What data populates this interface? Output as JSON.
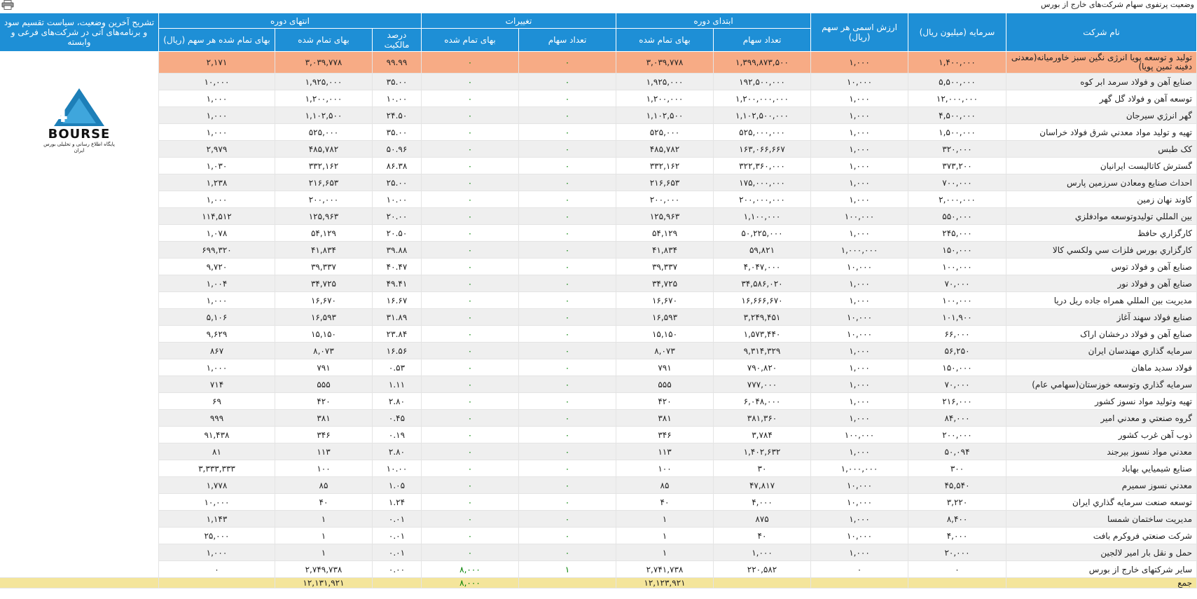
{
  "page": {
    "title": "وضعیت پرتفوی سهام شرکت‌های خارج از بورس"
  },
  "header": {
    "company": "نام شرکت",
    "capital": "سرمایه (میلیون ریال)",
    "par_value": "ارزش اسمی هر سهم (ریال)",
    "period_start": "ابتدای دوره",
    "changes": "تغییرات",
    "period_end": "انتهای دوره",
    "description": "تشریح آخرین وضعیت، سیاست تقسیم سود و برنامه‌های آتی در شرکت‌های فرعی و وابسته",
    "shares_count": "تعداد سهام",
    "cost": "بهای تمام شده",
    "ownership": "درصد مالکیت",
    "cost_per_share": "بهای تمام شده هر سهم (ریال)"
  },
  "logo": {
    "brand": "BOURSE",
    "subtitle": "پایگاه اطلاع رسانی و تحلیلی بورس ایران"
  },
  "rows": [
    {
      "name": "تولید و توسعه پویا انرژی نگین سبز خاورمیانه(معدنی دفینه ثمین پویا)",
      "capital": "۱,۴۰۰,۰۰۰",
      "par": "۱,۰۰۰",
      "s_count": "۱,۳۹۹,۸۷۳,۵۰۰",
      "s_cost": "۳,۰۳۹,۷۷۸",
      "c_count": "۰",
      "c_cost": "۰",
      "ownership": "۹۹.۹۹",
      "e_cost": "۳,۰۳۹,۷۷۸",
      "per_share": "۲,۱۷۱"
    },
    {
      "name": "صنایع آهن و فولاد سرمد ابر کوه",
      "capital": "۵,۵۰۰,۰۰۰",
      "par": "۱۰,۰۰۰",
      "s_count": "۱۹۲,۵۰۰,۰۰۰",
      "s_cost": "۱,۹۲۵,۰۰۰",
      "c_count": "۰",
      "c_cost": "۰",
      "ownership": "۳۵.۰۰",
      "e_cost": "۱,۹۲۵,۰۰۰",
      "per_share": "۱۰,۰۰۰"
    },
    {
      "name": "توسعه آهن و فولاد گل گهر",
      "capital": "۱۲,۰۰۰,۰۰۰",
      "par": "۱,۰۰۰",
      "s_count": "۱,۲۰۰,۰۰۰,۰۰۰",
      "s_cost": "۱,۲۰۰,۰۰۰",
      "c_count": "۰",
      "c_cost": "۰",
      "ownership": "۱۰.۰۰",
      "e_cost": "۱,۲۰۰,۰۰۰",
      "per_share": "۱,۰۰۰"
    },
    {
      "name": "گهر انرژي سيرجان",
      "capital": "۴,۵۰۰,۰۰۰",
      "par": "۱,۰۰۰",
      "s_count": "۱,۱۰۲,۵۰۰,۰۰۰",
      "s_cost": "۱,۱۰۲,۵۰۰",
      "c_count": "۰",
      "c_cost": "۰",
      "ownership": "۲۴.۵۰",
      "e_cost": "۱,۱۰۲,۵۰۰",
      "per_share": "۱,۰۰۰"
    },
    {
      "name": "تهیه و تولید مواد معدني شرق فولاد خراسان",
      "capital": "۱,۵۰۰,۰۰۰",
      "par": "۱,۰۰۰",
      "s_count": "۵۲۵,۰۰۰,۰۰۰",
      "s_cost": "۵۲۵,۰۰۰",
      "c_count": "۰",
      "c_cost": "۰",
      "ownership": "۳۵.۰۰",
      "e_cost": "۵۲۵,۰۰۰",
      "per_share": "۱,۰۰۰"
    },
    {
      "name": "کک طبس",
      "capital": "۳۲۰,۰۰۰",
      "par": "۱,۰۰۰",
      "s_count": "۱۶۳,۰۶۶,۶۶۷",
      "s_cost": "۴۸۵,۷۸۲",
      "c_count": "۰",
      "c_cost": "۰",
      "ownership": "۵۰.۹۶",
      "e_cost": "۴۸۵,۷۸۲",
      "per_share": "۲,۹۷۹"
    },
    {
      "name": "گسترش کاتالیست ایرانیان",
      "capital": "۳۷۳,۲۰۰",
      "par": "۱,۰۰۰",
      "s_count": "۳۲۲,۳۶۰,۰۰۰",
      "s_cost": "۳۳۲,۱۶۲",
      "c_count": "۰",
      "c_cost": "۰",
      "ownership": "۸۶.۳۸",
      "e_cost": "۳۳۲,۱۶۲",
      "per_share": "۱,۰۳۰"
    },
    {
      "name": "احداث صنايع ومعادن سرزمين پارس",
      "capital": "۷۰۰,۰۰۰",
      "par": "۱,۰۰۰",
      "s_count": "۱۷۵,۰۰۰,۰۰۰",
      "s_cost": "۲۱۶,۶۵۳",
      "c_count": "۰",
      "c_cost": "۰",
      "ownership": "۲۵.۰۰",
      "e_cost": "۲۱۶,۶۵۳",
      "per_share": "۱,۲۳۸"
    },
    {
      "name": "کاوند نهان زمين",
      "capital": "۲,۰۰۰,۰۰۰",
      "par": "۱,۰۰۰",
      "s_count": "۲۰۰,۰۰۰,۰۰۰",
      "s_cost": "۲۰۰,۰۰۰",
      "c_count": "۰",
      "c_cost": "۰",
      "ownership": "۱۰.۰۰",
      "e_cost": "۲۰۰,۰۰۰",
      "per_share": "۱,۰۰۰"
    },
    {
      "name": "بين المللي توليدوتوسعه موادفلزي",
      "capital": "۵۵۰,۰۰۰",
      "par": "۱۰۰,۰۰۰",
      "s_count": "۱,۱۰۰,۰۰۰",
      "s_cost": "۱۲۵,۹۶۳",
      "c_count": "۰",
      "c_cost": "۰",
      "ownership": "۲۰.۰۰",
      "e_cost": "۱۲۵,۹۶۳",
      "per_share": "۱۱۴,۵۱۲"
    },
    {
      "name": "کارگزاري حافظ",
      "capital": "۲۴۵,۰۰۰",
      "par": "۱,۰۰۰",
      "s_count": "۵۰,۲۲۵,۰۰۰",
      "s_cost": "۵۴,۱۲۹",
      "c_count": "۰",
      "c_cost": "۰",
      "ownership": "۲۰.۵۰",
      "e_cost": "۵۴,۱۲۹",
      "per_share": "۱,۰۷۸"
    },
    {
      "name": "کارگزاري بورس فلزات سي ولکسي کالا",
      "capital": "۱۵۰,۰۰۰",
      "par": "۱,۰۰۰,۰۰۰",
      "s_count": "۵۹,۸۲۱",
      "s_cost": "۴۱,۸۳۴",
      "c_count": "۰",
      "c_cost": "۰",
      "ownership": "۳۹.۸۸",
      "e_cost": "۴۱,۸۳۴",
      "per_share": "۶۹۹,۳۲۰"
    },
    {
      "name": "صنايع آهن و فولاد توس",
      "capital": "۱۰۰,۰۰۰",
      "par": "۱۰,۰۰۰",
      "s_count": "۴,۰۴۷,۰۰۰",
      "s_cost": "۳۹,۳۳۷",
      "c_count": "۰",
      "c_cost": "۰",
      "ownership": "۴۰.۴۷",
      "e_cost": "۳۹,۳۳۷",
      "per_share": "۹,۷۲۰"
    },
    {
      "name": "صنايع آهن و فولاد نور",
      "capital": "۷۰,۰۰۰",
      "par": "۱,۰۰۰",
      "s_count": "۳۴,۵۸۶,۰۲۰",
      "s_cost": "۳۴,۷۲۵",
      "c_count": "۰",
      "c_cost": "۰",
      "ownership": "۴۹.۴۱",
      "e_cost": "۳۴,۷۲۵",
      "per_share": "۱,۰۰۴"
    },
    {
      "name": "مديريت بين المللي همراه جاده ريل دريا",
      "capital": "۱۰۰,۰۰۰",
      "par": "۱,۰۰۰",
      "s_count": "۱۶,۶۶۶,۶۷۰",
      "s_cost": "۱۶,۶۷۰",
      "c_count": "۰",
      "c_cost": "۰",
      "ownership": "۱۶.۶۷",
      "e_cost": "۱۶,۶۷۰",
      "per_share": "۱,۰۰۰"
    },
    {
      "name": "صنايع فولاد سهند آغاز",
      "capital": "۱۰۱,۹۰۰",
      "par": "۱۰,۰۰۰",
      "s_count": "۳,۲۴۹,۴۵۱",
      "s_cost": "۱۶,۵۹۳",
      "c_count": "۰",
      "c_cost": "۰",
      "ownership": "۳۱.۸۹",
      "e_cost": "۱۶,۵۹۳",
      "per_share": "۵,۱۰۶"
    },
    {
      "name": "صنايع آهن و فولاد درخشان اراک",
      "capital": "۶۶,۰۰۰",
      "par": "۱۰,۰۰۰",
      "s_count": "۱,۵۷۳,۴۴۰",
      "s_cost": "۱۵,۱۵۰",
      "c_count": "۰",
      "c_cost": "۰",
      "ownership": "۲۳.۸۴",
      "e_cost": "۱۵,۱۵۰",
      "per_share": "۹,۶۲۹"
    },
    {
      "name": "سرمايه گذاري مهندسان ايران",
      "capital": "۵۶,۲۵۰",
      "par": "۱,۰۰۰",
      "s_count": "۹,۳۱۴,۳۲۹",
      "s_cost": "۸,۰۷۳",
      "c_count": "۰",
      "c_cost": "۰",
      "ownership": "۱۶.۵۶",
      "e_cost": "۸,۰۷۳",
      "per_share": "۸۶۷"
    },
    {
      "name": "فولاد سديد ماهان",
      "capital": "۱۵۰,۰۰۰",
      "par": "۱,۰۰۰",
      "s_count": "۷۹۰,۸۲۰",
      "s_cost": "۷۹۱",
      "c_count": "۰",
      "c_cost": "۰",
      "ownership": "۰.۵۳",
      "e_cost": "۷۹۱",
      "per_share": "۱,۰۰۰"
    },
    {
      "name": "سرمايه گذاري وتوسعه خوزستان(سهامي عام)",
      "capital": "۷۰,۰۰۰",
      "par": "۱,۰۰۰",
      "s_count": "۷۷۷,۰۰۰",
      "s_cost": "۵۵۵",
      "c_count": "۰",
      "c_cost": "۰",
      "ownership": "۱.۱۱",
      "e_cost": "۵۵۵",
      "per_share": "۷۱۴"
    },
    {
      "name": "تهيه وتوليد مواد نسوز کشور",
      "capital": "۲۱۶,۰۰۰",
      "par": "۱,۰۰۰",
      "s_count": "۶,۰۴۸,۰۰۰",
      "s_cost": "۴۲۰",
      "c_count": "۰",
      "c_cost": "۰",
      "ownership": "۲.۸۰",
      "e_cost": "۴۲۰",
      "per_share": "۶۹"
    },
    {
      "name": "گروه صنعتي و معدني امير",
      "capital": "۸۴,۰۰۰",
      "par": "۱,۰۰۰",
      "s_count": "۳۸۱,۳۶۰",
      "s_cost": "۳۸۱",
      "c_count": "۰",
      "c_cost": "۰",
      "ownership": "۰.۴۵",
      "e_cost": "۳۸۱",
      "per_share": "۹۹۹"
    },
    {
      "name": "ذوب آهن غرب کشور",
      "capital": "۲۰۰,۰۰۰",
      "par": "۱۰۰,۰۰۰",
      "s_count": "۳,۷۸۴",
      "s_cost": "۳۴۶",
      "c_count": "۰",
      "c_cost": "۰",
      "ownership": "۰.۱۹",
      "e_cost": "۳۴۶",
      "per_share": "۹۱,۴۳۸"
    },
    {
      "name": "معدني مواد نسوز بيرجند",
      "capital": "۵۰,۰۹۴",
      "par": "۱,۰۰۰",
      "s_count": "۱,۴۰۲,۶۳۲",
      "s_cost": "۱۱۳",
      "c_count": "۰",
      "c_cost": "۰",
      "ownership": "۲.۸۰",
      "e_cost": "۱۱۳",
      "per_share": "۸۱"
    },
    {
      "name": "صنايع شيميايي بهاباد",
      "capital": "۳۰۰",
      "par": "۱,۰۰۰,۰۰۰",
      "s_count": "۳۰",
      "s_cost": "۱۰۰",
      "c_count": "۰",
      "c_cost": "۰",
      "ownership": "۱۰.۰۰",
      "e_cost": "۱۰۰",
      "per_share": "۳,۳۳۳,۳۳۳"
    },
    {
      "name": "معدني نسوز سميرم",
      "capital": "۴۵,۵۴۰",
      "par": "۱۰,۰۰۰",
      "s_count": "۴۷,۸۱۷",
      "s_cost": "۸۵",
      "c_count": "۰",
      "c_cost": "۰",
      "ownership": "۱.۰۵",
      "e_cost": "۸۵",
      "per_share": "۱,۷۷۸"
    },
    {
      "name": "توسعه صنعت سرمايه گذاري ايران",
      "capital": "۳,۲۲۰",
      "par": "۱۰,۰۰۰",
      "s_count": "۴,۰۰۰",
      "s_cost": "۴۰",
      "c_count": "۰",
      "c_cost": "۰",
      "ownership": "۱.۲۴",
      "e_cost": "۴۰",
      "per_share": "۱۰,۰۰۰"
    },
    {
      "name": "مديريت ساختمان شمسا",
      "capital": "۸,۴۰۰",
      "par": "۱,۰۰۰",
      "s_count": "۸۷۵",
      "s_cost": "۱",
      "c_count": "۰",
      "c_cost": "۰",
      "ownership": "۰.۰۱",
      "e_cost": "۱",
      "per_share": "۱,۱۴۳"
    },
    {
      "name": "شرکت صنعتي فروکرم بافت",
      "capital": "۴,۰۰۰",
      "par": "۱۰,۰۰۰",
      "s_count": "۴۰",
      "s_cost": "۱",
      "c_count": "۰",
      "c_cost": "۰",
      "ownership": "۰.۰۱",
      "e_cost": "۱",
      "per_share": "۲۵,۰۰۰"
    },
    {
      "name": "حمل و نقل بار امير لالجين",
      "capital": "۲۰,۰۰۰",
      "par": "۱,۰۰۰",
      "s_count": "۱,۰۰۰",
      "s_cost": "۱",
      "c_count": "۰",
      "c_cost": "۰",
      "ownership": "۰.۰۱",
      "e_cost": "۱",
      "per_share": "۱,۰۰۰"
    },
    {
      "name": "سایر شرکتهای خارج از بورس",
      "capital": "۰",
      "par": "۰",
      "s_count": "۲۲۰,۵۸۲",
      "s_cost": "۲,۷۴۱,۷۳۸",
      "c_count": "۱",
      "c_cost": "۸,۰۰۰",
      "ownership": "۰.۰۰",
      "e_cost": "۲,۷۴۹,۷۳۸",
      "per_share": "۰"
    }
  ],
  "total": {
    "label": "جمع",
    "s_cost": "۱۲,۱۲۳,۹۲۱",
    "c_cost": "۸,۰۰۰",
    "e_cost": "۱۲,۱۳۱,۹۲۱"
  },
  "colors": {
    "header_bg": "#1e8fd6",
    "highlight_row": "#f7ab85",
    "total_row": "#f4e59b",
    "positive_change": "#008000"
  }
}
